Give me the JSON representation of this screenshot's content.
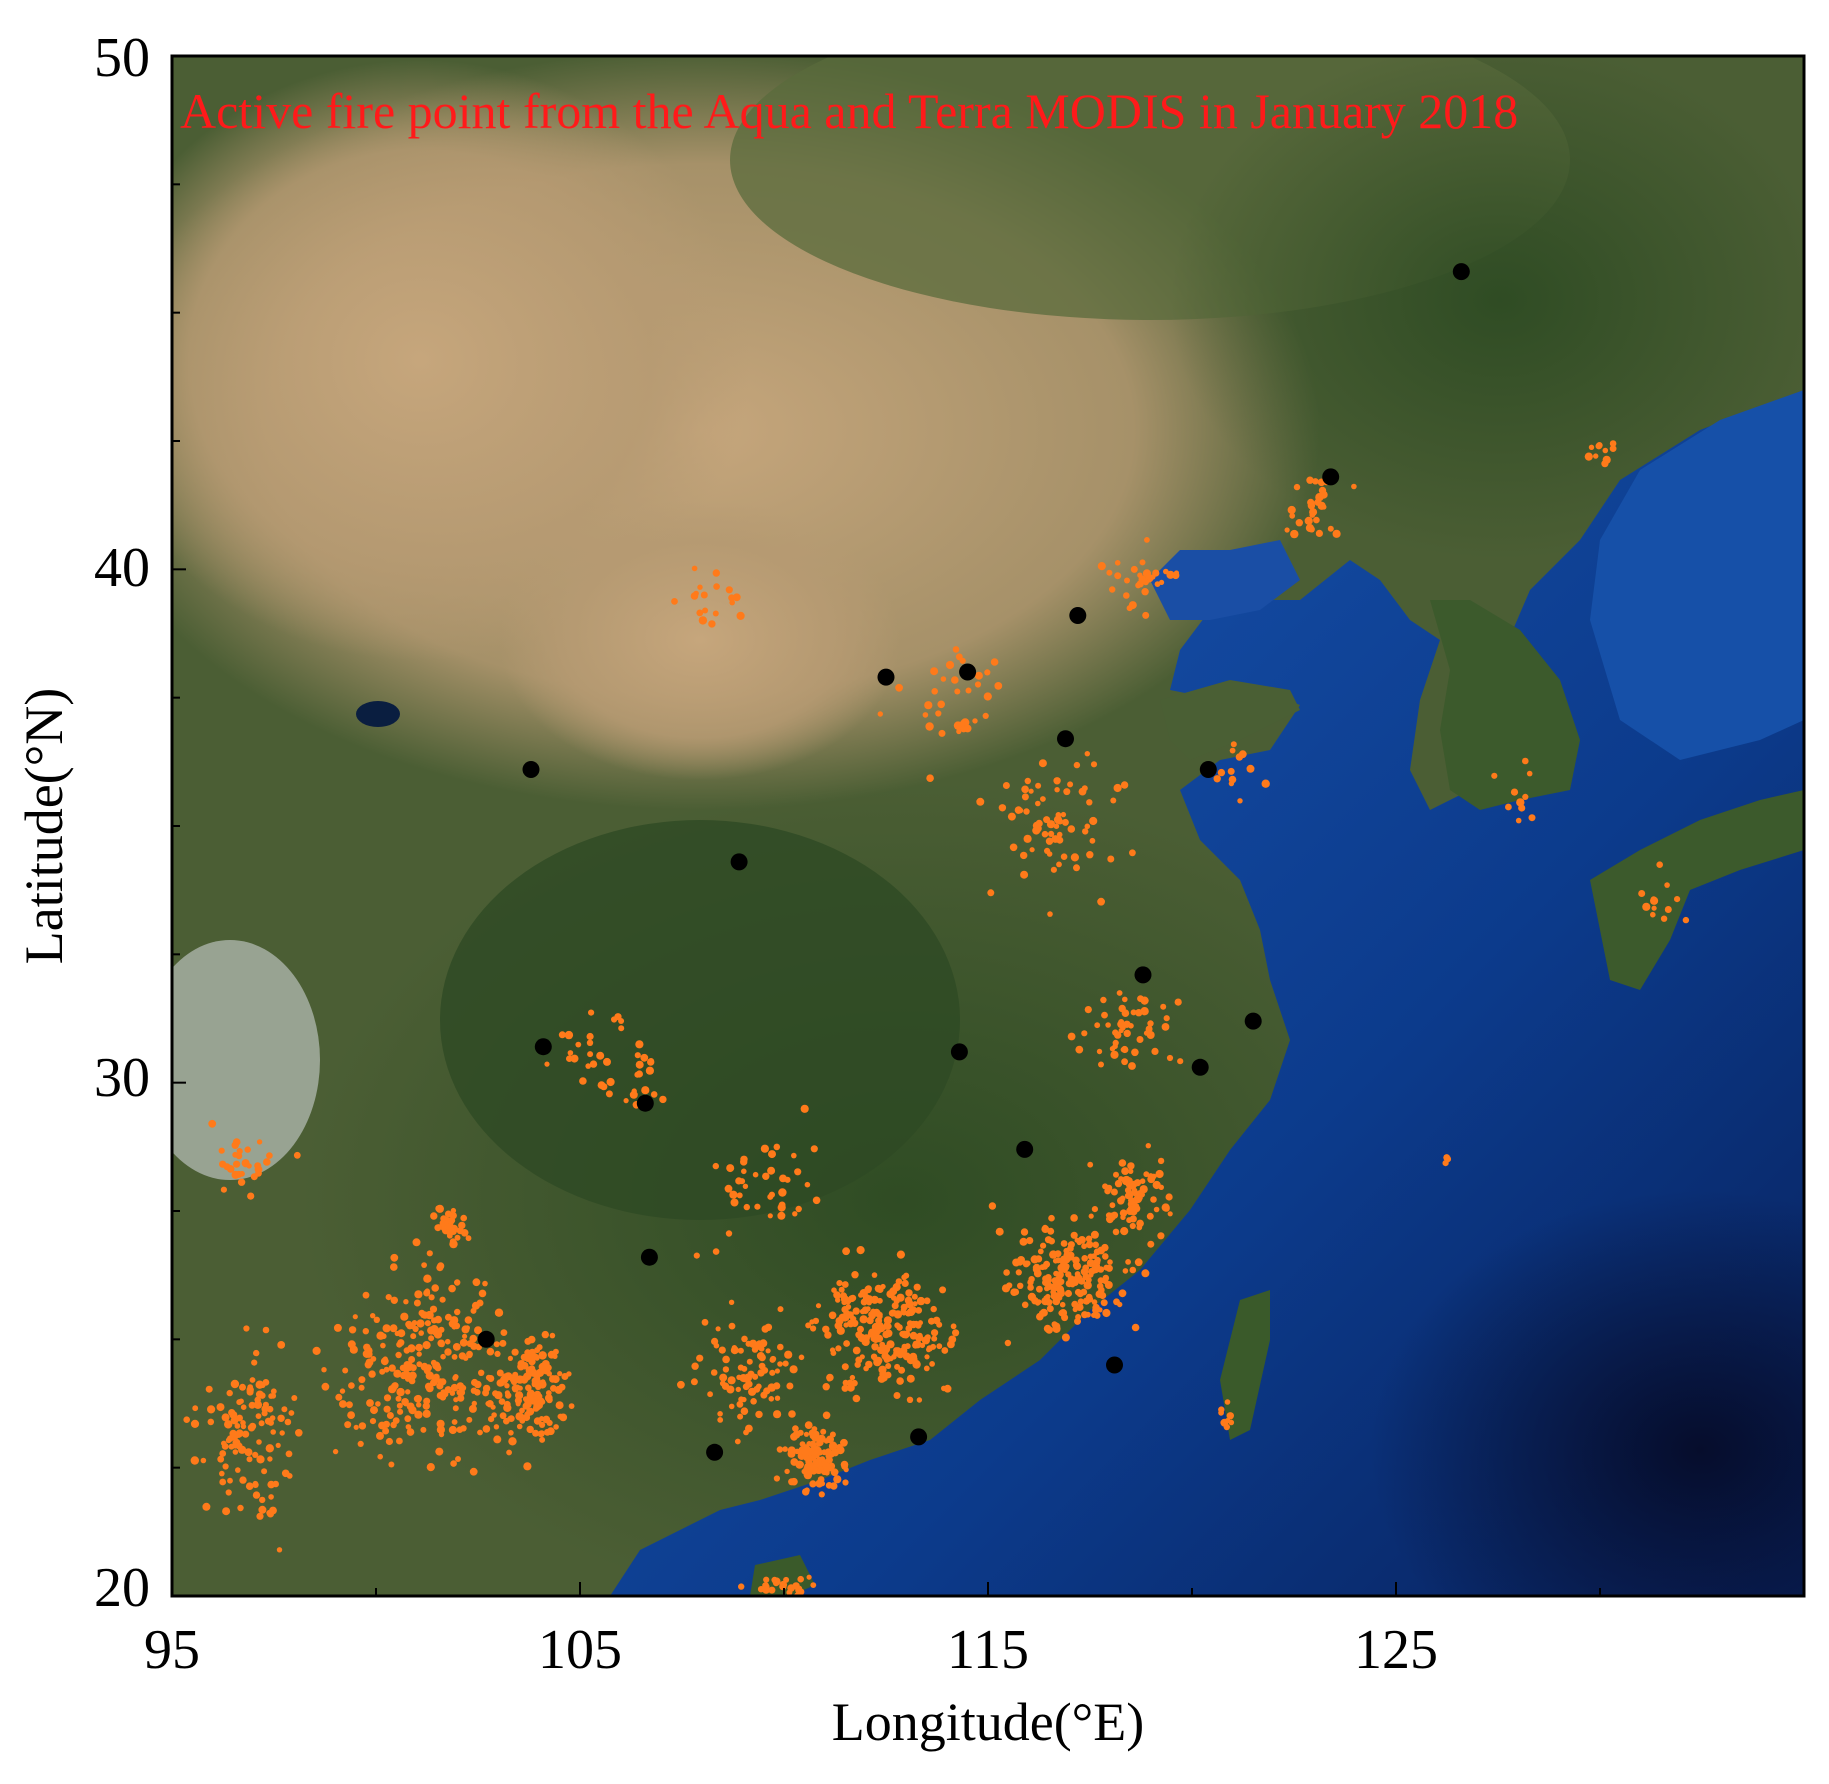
{
  "map": {
    "title": "Active fire point from the Aqua and Terra MODIS in January 2018",
    "xlabel": "Longitude(°E)",
    "ylabel": "Latitude(°N)",
    "x_ticks": [
      "95",
      "105",
      "115",
      "125"
    ],
    "y_ticks": [
      "50",
      "40",
      "30",
      "20"
    ],
    "x_range": [
      95,
      135
    ],
    "y_range": [
      20,
      50
    ],
    "basemap": "satellite true-color imagery of East Asia (desert, vegetation, ocean)",
    "colors": {
      "title": "#ff1a1a",
      "fire_point": "#ff7a1a",
      "city_marker": "#000000",
      "ocean": "#0d3d8c",
      "land_green": "#3a5a2a",
      "land_desert": "#b39670"
    }
  },
  "chart_data": {
    "type": "scatter",
    "series": [
      {
        "name": "",
        "marker": "black-circle",
        "points": [
          [
            103.8,
            36.1
          ],
          [
            108.9,
            34.3
          ],
          [
            112.5,
            37.9
          ],
          [
            114.5,
            38.0
          ],
          [
            117.2,
            39.1
          ],
          [
            116.9,
            36.7
          ],
          [
            120.4,
            36.1
          ],
          [
            126.6,
            45.8
          ],
          [
            123.4,
            41.8
          ],
          [
            104.1,
            30.7
          ],
          [
            106.6,
            29.6
          ],
          [
            106.7,
            26.6
          ],
          [
            102.7,
            25.0
          ],
          [
            108.3,
            22.8
          ],
          [
            113.3,
            23.1
          ],
          [
            114.3,
            30.6
          ],
          [
            115.9,
            28.7
          ],
          [
            118.8,
            32.1
          ],
          [
            120.2,
            30.3
          ],
          [
            121.5,
            31.2
          ],
          [
            118.1,
            24.5
          ]
        ]
      },
      {
        "name": "",
        "marker": "orange-dot",
        "clusters": [
          {
            "lon": 101.2,
            "lat": 24.5,
            "spread_lon": 3.5,
            "spread_lat": 3.0,
            "count": 260
          },
          {
            "lon": 103.8,
            "lat": 24.0,
            "spread_lon": 1.5,
            "spread_lat": 2.0,
            "count": 150
          },
          {
            "lon": 96.8,
            "lat": 23.0,
            "spread_lon": 1.8,
            "spread_lat": 2.8,
            "count": 120
          },
          {
            "lon": 101.8,
            "lat": 27.2,
            "spread_lon": 0.6,
            "spread_lat": 0.6,
            "count": 40
          },
          {
            "lon": 110.8,
            "lat": 22.6,
            "spread_lon": 1.2,
            "spread_lat": 1.2,
            "count": 110
          },
          {
            "lon": 112.5,
            "lat": 25.2,
            "spread_lon": 2.8,
            "spread_lat": 2.0,
            "count": 230
          },
          {
            "lon": 117.0,
            "lat": 26.2,
            "spread_lon": 2.5,
            "spread_lat": 1.8,
            "count": 200
          },
          {
            "lon": 109.0,
            "lat": 24.3,
            "spread_lon": 2.2,
            "spread_lat": 1.8,
            "count": 90
          },
          {
            "lon": 118.5,
            "lat": 27.8,
            "spread_lon": 1.5,
            "spread_lat": 1.2,
            "count": 80
          },
          {
            "lon": 118.5,
            "lat": 31.0,
            "spread_lon": 2.0,
            "spread_lat": 1.5,
            "count": 50
          },
          {
            "lon": 116.5,
            "lat": 35.0,
            "spread_lon": 2.5,
            "spread_lat": 3.0,
            "count": 70
          },
          {
            "lon": 114.0,
            "lat": 37.5,
            "spread_lon": 2.5,
            "spread_lat": 2.0,
            "count": 35
          },
          {
            "lon": 118.8,
            "lat": 39.8,
            "spread_lon": 1.5,
            "spread_lat": 1.0,
            "count": 30
          },
          {
            "lon": 123.0,
            "lat": 41.2,
            "spread_lon": 1.2,
            "spread_lat": 1.0,
            "count": 30
          },
          {
            "lon": 108.5,
            "lat": 39.5,
            "spread_lon": 2.0,
            "spread_lat": 1.5,
            "count": 18
          },
          {
            "lon": 106.0,
            "lat": 30.5,
            "spread_lon": 2.5,
            "spread_lat": 1.5,
            "count": 40
          },
          {
            "lon": 109.5,
            "lat": 28.0,
            "spread_lon": 2.5,
            "spread_lat": 1.8,
            "count": 40
          },
          {
            "lon": 121.2,
            "lat": 36.0,
            "spread_lon": 1.0,
            "spread_lat": 1.2,
            "count": 12
          },
          {
            "lon": 128.0,
            "lat": 35.8,
            "spread_lon": 1.2,
            "spread_lat": 1.5,
            "count": 10
          },
          {
            "lon": 131.5,
            "lat": 33.5,
            "spread_lon": 1.2,
            "spread_lat": 1.0,
            "count": 12
          },
          {
            "lon": 130.0,
            "lat": 42.3,
            "spread_lon": 0.8,
            "spread_lat": 0.4,
            "count": 10
          },
          {
            "lon": 120.8,
            "lat": 23.5,
            "spread_lon": 0.4,
            "spread_lat": 0.7,
            "count": 8
          },
          {
            "lon": 126.2,
            "lat": 28.5,
            "spread_lon": 0.2,
            "spread_lat": 0.2,
            "count": 4
          },
          {
            "lon": 97.0,
            "lat": 28.5,
            "spread_lon": 1.5,
            "spread_lat": 1.0,
            "count": 30
          },
          {
            "lon": 110.0,
            "lat": 20.2,
            "spread_lon": 1.5,
            "spread_lat": 0.5,
            "count": 25
          }
        ]
      }
    ],
    "xlim": [
      95,
      135
    ],
    "ylim": [
      20,
      50
    ]
  }
}
